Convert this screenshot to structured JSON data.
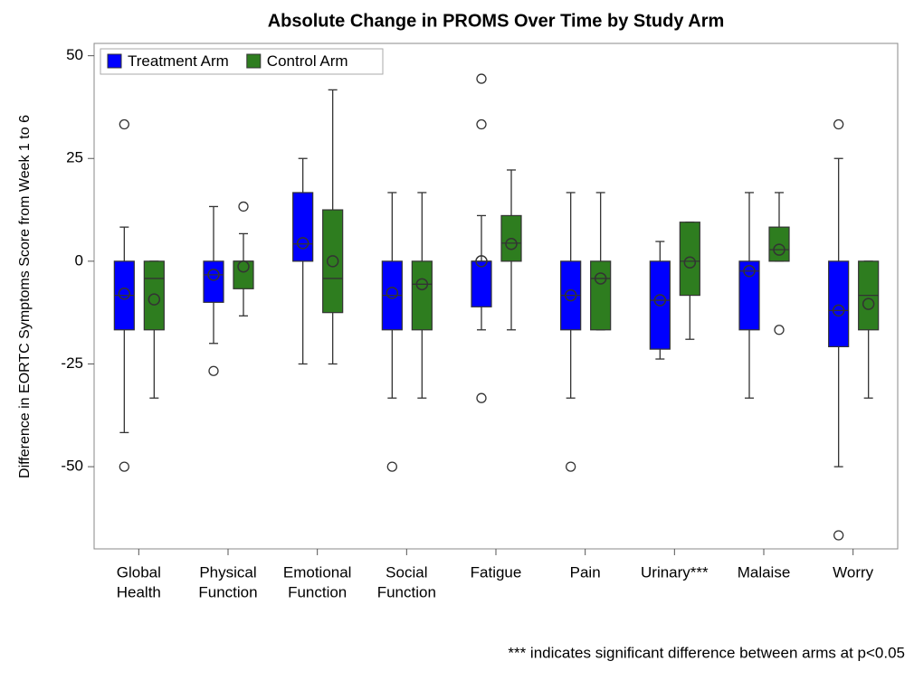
{
  "chart_data": {
    "type": "box",
    "title": "Absolute Change in PROMS Over Time by Study Arm",
    "y_label": "Difference in EORTC Symptoms Score from Week 1 to 6",
    "footnote": "*** indicates significant difference between arms at p<0.05",
    "categories": [
      [
        "Global",
        "Health"
      ],
      [
        "Physical",
        "Function"
      ],
      [
        "Emotional",
        "Function"
      ],
      [
        "Social",
        "Function"
      ],
      [
        "Fatigue"
      ],
      [
        "Pain"
      ],
      [
        "Urinary***"
      ],
      [
        "Malaise"
      ],
      [
        "Worry"
      ]
    ],
    "ylim": [
      -70,
      53
    ],
    "yticks": [
      50,
      25,
      0,
      -25,
      -50
    ],
    "grid": false,
    "legend": "top-left",
    "series": [
      {
        "name": "Treatment Arm",
        "color": "#0000ff",
        "boxes": [
          {
            "min": -41.7,
            "q1": -16.7,
            "median": -8.3,
            "q3": 0,
            "max": 8.3,
            "mean": -7.9,
            "outliers": [
              33.3,
              -50
            ]
          },
          {
            "min": -20,
            "q1": -10,
            "median": -3.3,
            "q3": 0,
            "max": 13.3,
            "mean": -3.3,
            "outliers": [
              -26.7
            ]
          },
          {
            "min": -25,
            "q1": 0,
            "median": 4.2,
            "q3": 16.7,
            "max": 25,
            "mean": 4.4,
            "outliers": []
          },
          {
            "min": -33.3,
            "q1": -16.7,
            "median": -8.3,
            "q3": 0,
            "max": 16.7,
            "mean": -7.7,
            "outliers": [
              -50
            ]
          },
          {
            "min": -16.7,
            "q1": -11.1,
            "median": 0,
            "q3": 0,
            "max": 11.1,
            "mean": 0,
            "outliers": [
              44.4,
              33.3,
              -33.3
            ]
          },
          {
            "min": -33.3,
            "q1": -16.7,
            "median": -8.3,
            "q3": 0,
            "max": 16.7,
            "mean": -8.3,
            "outliers": [
              -50
            ]
          },
          {
            "min": -23.8,
            "q1": -21.4,
            "median": -9.5,
            "q3": 0,
            "max": 4.8,
            "mean": -9.5,
            "outliers": []
          },
          {
            "min": -33.3,
            "q1": -16.7,
            "median": -2.4,
            "q3": 0,
            "max": 16.7,
            "mean": -2.4,
            "outliers": []
          },
          {
            "min": -50,
            "q1": -20.8,
            "median": -12,
            "q3": 0,
            "max": 25,
            "mean": -12,
            "outliers": [
              33.3,
              -66.7
            ]
          }
        ]
      },
      {
        "name": "Control Arm",
        "color": "#2e7d1f",
        "boxes": [
          {
            "min": -33.3,
            "q1": -16.7,
            "median": -4.2,
            "q3": 0,
            "max": 0,
            "mean": -9.3,
            "outliers": []
          },
          {
            "min": -13.3,
            "q1": -6.7,
            "median": 0,
            "q3": 0,
            "max": 6.7,
            "mean": -1.3,
            "outliers": [
              13.3
            ]
          },
          {
            "min": -25,
            "q1": -12.5,
            "median": -4.2,
            "q3": 12.5,
            "max": 41.7,
            "mean": 0,
            "outliers": []
          },
          {
            "min": -33.3,
            "q1": -16.7,
            "median": -5.6,
            "q3": 0,
            "max": 16.7,
            "mean": -5.6,
            "outliers": []
          },
          {
            "min": -16.7,
            "q1": 0,
            "median": 4.4,
            "q3": 11.1,
            "max": 22.2,
            "mean": 4.2,
            "outliers": []
          },
          {
            "min": -16.7,
            "q1": -16.7,
            "median": -4.2,
            "q3": 0,
            "max": 16.7,
            "mean": -4.2,
            "outliers": []
          },
          {
            "min": -19,
            "q1": -8.3,
            "median": 0,
            "q3": 9.5,
            "max": 9.5,
            "mean": -0.3,
            "outliers": []
          },
          {
            "min": 0,
            "q1": 0,
            "median": 2.8,
            "q3": 8.3,
            "max": 16.7,
            "mean": 2.8,
            "outliers": [
              -16.7
            ]
          },
          {
            "min": -33.3,
            "q1": -16.7,
            "median": -8.3,
            "q3": 0,
            "max": 0,
            "mean": -10.4,
            "outliers": []
          }
        ]
      }
    ]
  }
}
